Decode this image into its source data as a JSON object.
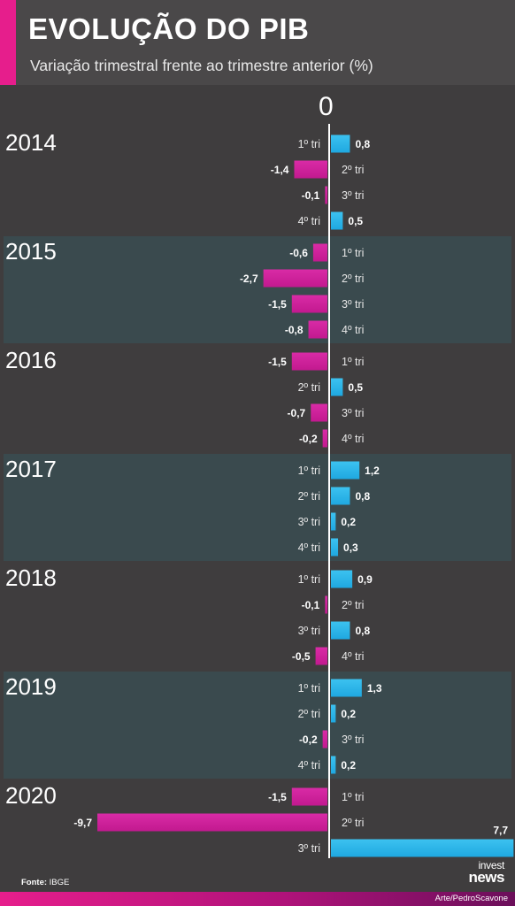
{
  "header": {
    "title": "EVOLUÇÃO DO PIB",
    "subtitle": "Variação trimestral frente ao trimestre anterior (%)"
  },
  "chart_data": {
    "type": "bar",
    "orientation": "horizontal",
    "zero_label": "0",
    "groups": [
      {
        "year": "2014",
        "quarters": [
          {
            "label": "1º tri",
            "value": 0.8,
            "text": "0,8"
          },
          {
            "label": "2º tri",
            "value": -1.4,
            "text": "-1,4"
          },
          {
            "label": "3º tri",
            "value": -0.1,
            "text": "-0,1"
          },
          {
            "label": "4º tri",
            "value": 0.5,
            "text": "0,5"
          }
        ]
      },
      {
        "year": "2015",
        "quarters": [
          {
            "label": "1º tri",
            "value": -0.6,
            "text": "-0,6"
          },
          {
            "label": "2º tri",
            "value": -2.7,
            "text": "-2,7"
          },
          {
            "label": "3º tri",
            "value": -1.5,
            "text": "-1,5"
          },
          {
            "label": "4º tri",
            "value": -0.8,
            "text": "-0,8"
          }
        ]
      },
      {
        "year": "2016",
        "quarters": [
          {
            "label": "1º tri",
            "value": -1.5,
            "text": "-1,5"
          },
          {
            "label": "2º tri",
            "value": 0.5,
            "text": "0,5"
          },
          {
            "label": "3º tri",
            "value": -0.7,
            "text": "-0,7"
          },
          {
            "label": "4º tri",
            "value": -0.2,
            "text": "-0,2"
          }
        ]
      },
      {
        "year": "2017",
        "quarters": [
          {
            "label": "1º tri",
            "value": 1.2,
            "text": "1,2"
          },
          {
            "label": "2º tri",
            "value": 0.8,
            "text": "0,8"
          },
          {
            "label": "3º tri",
            "value": 0.2,
            "text": "0,2"
          },
          {
            "label": "4º tri",
            "value": 0.3,
            "text": "0,3"
          }
        ]
      },
      {
        "year": "2018",
        "quarters": [
          {
            "label": "1º tri",
            "value": 0.9,
            "text": "0,9"
          },
          {
            "label": "2º tri",
            "value": -0.1,
            "text": "-0,1"
          },
          {
            "label": "3º tri",
            "value": 0.8,
            "text": "0,8"
          },
          {
            "label": "4º tri",
            "value": -0.5,
            "text": "-0,5"
          }
        ]
      },
      {
        "year": "2019",
        "quarters": [
          {
            "label": "1º tri",
            "value": 1.3,
            "text": "1,3"
          },
          {
            "label": "2º tri",
            "value": 0.2,
            "text": "0,2"
          },
          {
            "label": "3º tri",
            "value": -0.2,
            "text": "-0,2"
          },
          {
            "label": "4º tri",
            "value": 0.2,
            "text": "0,2"
          }
        ]
      },
      {
        "year": "2020",
        "quarters": [
          {
            "label": "1º tri",
            "value": -1.5,
            "text": "-1,5"
          },
          {
            "label": "2º tri",
            "value": -9.7,
            "text": "-9,7"
          },
          {
            "label": "3º tri",
            "value": 7.7,
            "text": "7,7"
          }
        ]
      }
    ],
    "colors": {
      "positive": "#1fa8e0",
      "negative": "#c2198f",
      "band_dark": "#3f3d3e",
      "band_teal": "#3a4a4e"
    }
  },
  "footer": {
    "source_label": "Fonte:",
    "source_value": "IBGE",
    "logo_line1": "invest",
    "logo_line2": "news",
    "credit": "Arte/PedroScavone"
  }
}
